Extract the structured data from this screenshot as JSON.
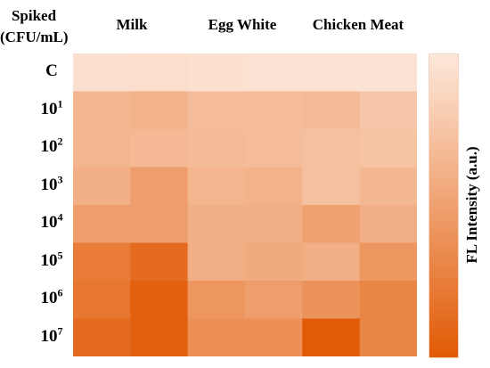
{
  "axis_title_line1": "Spiked",
  "axis_title_line2": "(CFU/mL)",
  "chart_data": {
    "type": "heatmap",
    "columns": [
      "Milk",
      "Egg White",
      "Chicken Meat"
    ],
    "rows": [
      {
        "label": "C",
        "base": "",
        "exp": ""
      },
      {
        "label": "10¹",
        "base": "10",
        "exp": "1"
      },
      {
        "label": "10²",
        "base": "10",
        "exp": "2"
      },
      {
        "label": "10³",
        "base": "10",
        "exp": "3"
      },
      {
        "label": "10⁴",
        "base": "10",
        "exp": "4"
      },
      {
        "label": "10⁵",
        "base": "10",
        "exp": "5"
      },
      {
        "label": "10⁶",
        "base": "10",
        "exp": "6"
      },
      {
        "label": "10⁷",
        "base": "10",
        "exp": "7"
      }
    ],
    "replicates_per_column": 2,
    "values": [
      [
        0.06,
        0.07,
        0.05,
        0.04,
        0.04,
        0.04
      ],
      [
        0.35,
        0.38,
        0.3,
        0.3,
        0.32,
        0.24
      ],
      [
        0.36,
        0.33,
        0.32,
        0.3,
        0.28,
        0.26
      ],
      [
        0.4,
        0.52,
        0.36,
        0.38,
        0.28,
        0.34
      ],
      [
        0.52,
        0.52,
        0.4,
        0.4,
        0.5,
        0.4
      ],
      [
        0.76,
        0.88,
        0.4,
        0.44,
        0.4,
        0.58
      ],
      [
        0.8,
        0.96,
        0.58,
        0.52,
        0.6,
        0.7
      ],
      [
        0.88,
        0.96,
        0.62,
        0.62,
        1.0,
        0.7
      ]
    ],
    "value_range": [
      0,
      1
    ],
    "colorbar_label": "FL Intensity (a.u.)",
    "color_low": "#fde8db",
    "color_high": "#e15a05",
    "gridlines": false
  }
}
